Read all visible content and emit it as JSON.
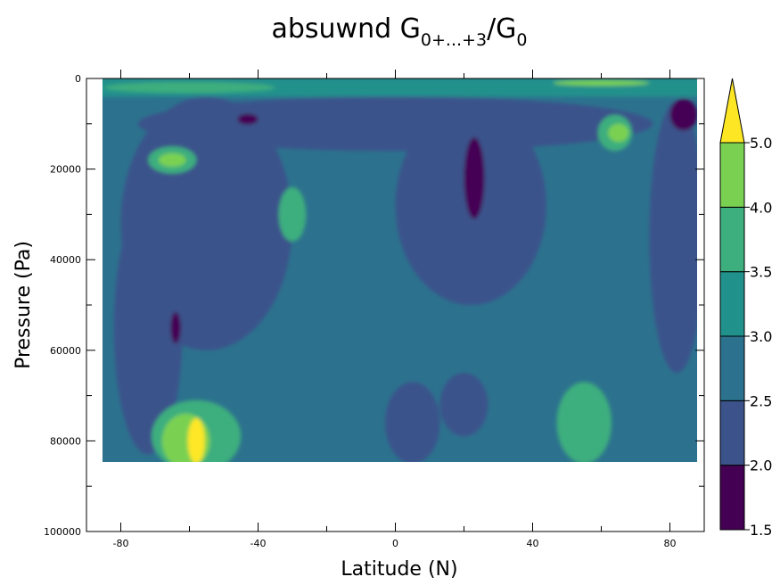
{
  "chart_data": {
    "type": "contour",
    "title": {
      "prefix": "absuwnd ",
      "parts": [
        {
          "text": "G",
          "sub": false
        },
        {
          "text": "0+...+3",
          "sub": true
        },
        {
          "text": "/G",
          "sub": false
        },
        {
          "text": "0",
          "sub": true
        }
      ]
    },
    "xlabel": "Latitude (N)",
    "ylabel": "Pressure (Pa)",
    "xlim": [
      -90,
      90
    ],
    "ylim": [
      0,
      100000
    ],
    "y_inverted": true,
    "x_ticks": [
      -80,
      -40,
      0,
      40,
      80
    ],
    "x_tick_labels": [
      "-80",
      "-40",
      "0",
      "40",
      "80"
    ],
    "y_ticks": [
      0,
      20000,
      40000,
      60000,
      80000,
      100000
    ],
    "y_tick_labels": [
      "0",
      "20000",
      "40000",
      "60000",
      "80000",
      "100000"
    ],
    "data_pressure_max": 85000,
    "levels": [
      1.5,
      2.0,
      2.5,
      3.0,
      3.5,
      4.0,
      5.0
    ],
    "level_labels": [
      "1.5",
      "2.0",
      "2.5",
      "3.0",
      "3.5",
      "4.0",
      "5.0"
    ],
    "level_colors": [
      "#440154",
      "#3b528b",
      "#2c728e",
      "#21918c",
      "#3dae7e",
      "#7ad151",
      "#fde725"
    ],
    "colorbar_extend": "max",
    "features": [
      {
        "level": 1,
        "lat": -55,
        "p": 32000,
        "rlat": 25,
        "rp": 28000
      },
      {
        "level": 1,
        "lat": -72,
        "p": 55000,
        "rlat": 10,
        "rp": 28000
      },
      {
        "level": 1,
        "lat": 22,
        "p": 28000,
        "rlat": 22,
        "rp": 22000
      },
      {
        "level": 1,
        "lat": 82,
        "p": 35000,
        "rlat": 8,
        "rp": 30000
      },
      {
        "level": 1,
        "lat": 0,
        "p": 10000,
        "rlat": 75,
        "rp": 6000
      },
      {
        "level": 1,
        "lat": 5,
        "p": 76000,
        "rlat": 8,
        "rp": 9000
      },
      {
        "level": 1,
        "lat": 20,
        "p": 72000,
        "rlat": 7,
        "rp": 7000
      },
      {
        "level": 0,
        "lat": 23,
        "p": 22000,
        "rlat": 3,
        "rp": 9000
      },
      {
        "level": 0,
        "lat": -43,
        "p": 9000,
        "rlat": 3,
        "rp": 1200
      },
      {
        "level": 0,
        "lat": 84,
        "p": 8000,
        "rlat": 4,
        "rp": 3500
      },
      {
        "level": 0,
        "lat": -64,
        "p": 55000,
        "rlat": 1.5,
        "rp": 3500
      },
      {
        "level": 4,
        "lat": -58,
        "p": 79000,
        "rlat": 13,
        "rp": 8000
      },
      {
        "level": 4,
        "lat": -65,
        "p": 18000,
        "rlat": 7,
        "rp": 3000
      },
      {
        "level": 4,
        "lat": 64,
        "p": 12000,
        "rlat": 5,
        "rp": 4000
      },
      {
        "level": 4,
        "lat": 55,
        "p": 76000,
        "rlat": 8,
        "rp": 9000
      },
      {
        "level": 4,
        "lat": -30,
        "p": 30000,
        "rlat": 4,
        "rp": 6000
      },
      {
        "level": 5,
        "lat": -61,
        "p": 80000,
        "rlat": 7,
        "rp": 6000
      },
      {
        "level": 5,
        "lat": -65,
        "p": 18000,
        "rlat": 4,
        "rp": 1500
      },
      {
        "level": 5,
        "lat": 65,
        "p": 12000,
        "rlat": 3,
        "rp": 2000
      },
      {
        "level": 4,
        "lat": -60,
        "p": 2000,
        "rlat": 25,
        "rp": 1200
      },
      {
        "level": 5,
        "lat": 60,
        "p": 1000,
        "rlat": 14,
        "rp": 600
      },
      {
        "level": 6,
        "lat": -58,
        "p": 80000,
        "rlat": 2.5,
        "rp": 5000
      }
    ]
  }
}
